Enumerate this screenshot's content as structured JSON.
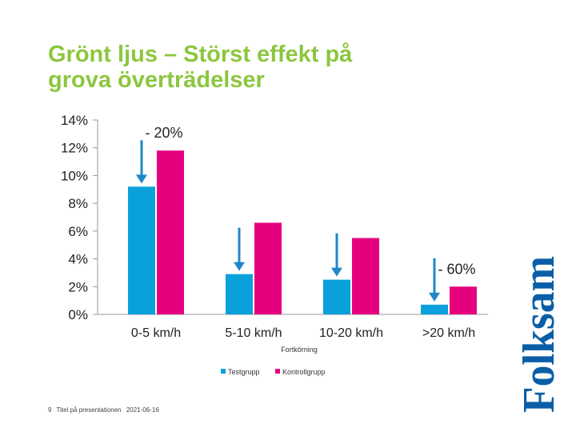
{
  "slide": {
    "title_line1": "Grönt ljus – Störst effekt på",
    "title_line2": "grova överträdelser",
    "footer_page": "9",
    "footer_title": "Titel på presentationen",
    "footer_date": "2021-06-16",
    "logo_text": "Folksam"
  },
  "colors": {
    "title": "#8dc63f",
    "testgrupp": "#0aa0dc",
    "kontrollgrupp": "#e5007e",
    "arrow": "#1e88c8",
    "axis": "#999999"
  },
  "chart_data": {
    "type": "bar",
    "title": "",
    "xlabel": "Fortkörning",
    "ylabel": "",
    "categories": [
      "0-5 km/h",
      "5-10 km/h",
      "10-20 km/h",
      ">20 km/h"
    ],
    "ylim": [
      0,
      14
    ],
    "yticks": [
      0,
      2,
      4,
      6,
      8,
      10,
      12,
      14
    ],
    "ytick_format": "%",
    "grid": false,
    "legend_position": "bottom",
    "series": [
      {
        "name": "Testgrupp",
        "values": [
          9.2,
          2.9,
          2.5,
          0.7
        ]
      },
      {
        "name": "Kontrollgrupp",
        "values": [
          11.8,
          6.6,
          5.5,
          2.0
        ]
      }
    ],
    "annotations": [
      {
        "text": "- 20%",
        "category": "0-5 km/h"
      },
      {
        "text": "- 60%",
        "category": ">20 km/h"
      }
    ],
    "arrows": [
      "0-5 km/h",
      "5-10 km/h",
      "10-20 km/h",
      ">20 km/h"
    ]
  }
}
